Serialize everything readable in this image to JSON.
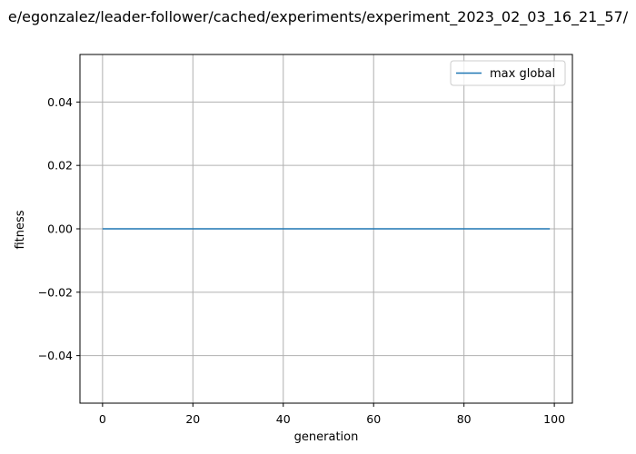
{
  "chart_data": {
    "type": "line",
    "title": "e/egonzalez/leader-follower/cached/experiments/experiment_2023_02_03_16_21_57/",
    "xlabel": "generation",
    "ylabel": "fitness",
    "xlim": [
      -5,
      104
    ],
    "ylim": [
      -0.055,
      0.055
    ],
    "xticks": [
      0,
      20,
      40,
      60,
      80,
      100
    ],
    "xtick_labels": [
      "0",
      "20",
      "40",
      "60",
      "80",
      "100"
    ],
    "yticks": [
      -0.04,
      -0.02,
      0.0,
      0.02,
      0.04
    ],
    "ytick_labels": [
      "−0.04",
      "−0.02",
      "0.00",
      "0.02",
      "0.04"
    ],
    "grid": true,
    "legend": "top-right",
    "series": [
      {
        "name": "max global",
        "color": "#1f77b4",
        "x": [
          0,
          99
        ],
        "y": [
          0.0,
          0.0
        ]
      }
    ]
  }
}
